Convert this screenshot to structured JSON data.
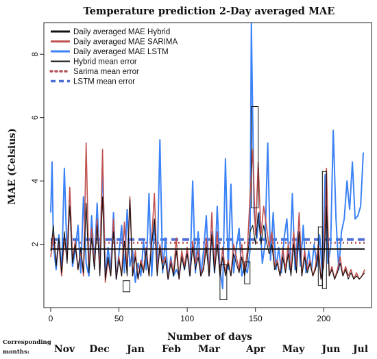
{
  "chart_data": {
    "type": "line",
    "title": "Temperature prediction 2-Day averaged MAE",
    "xlabel": "Number of days",
    "ylabel": "MAE (Celsius)",
    "xlim": [
      -5,
      235
    ],
    "ylim": [
      0,
      9
    ],
    "x_ticks": [
      0,
      50,
      100,
      150,
      200
    ],
    "y_ticks": [
      2,
      4,
      6,
      8
    ],
    "months_label": "Corresponding months:",
    "months": [
      "Nov",
      "Dec",
      "Jan",
      "Feb",
      "Mar",
      "Apr",
      "May",
      "Jun",
      "Jul"
    ],
    "legend": [
      {
        "label": "Daily averaged MAE Hybrid",
        "color": "#111111",
        "style": "solid"
      },
      {
        "label": "Daily averaged MAE SARIMA",
        "color": "#c0504d",
        "style": "solid"
      },
      {
        "label": "Daily averaged MAE LSTM",
        "color": "#3b82f6",
        "style": "solid"
      },
      {
        "label": "Hybrid mean error",
        "color": "#111111",
        "style": "solid"
      },
      {
        "label": "Sarima mean error",
        "color": "#b5545a",
        "style": "dotted"
      },
      {
        "label": "LSTM mean error",
        "color": "#4a6cd4",
        "style": "dashed"
      }
    ],
    "mean_lines": {
      "hybrid": 1.85,
      "sarima": 2.05,
      "lstm": 2.15
    },
    "anchors": {
      "lstm": [
        [
          0,
          3.0
        ],
        [
          1,
          4.6
        ],
        [
          2,
          2.0
        ],
        [
          4,
          1.2
        ],
        [
          6,
          2.3
        ],
        [
          8,
          1.1
        ],
        [
          10,
          4.4
        ],
        [
          12,
          1.6
        ],
        [
          14,
          3.6
        ],
        [
          16,
          1.3
        ],
        [
          18,
          1.8
        ],
        [
          20,
          2.6
        ],
        [
          22,
          1.1
        ],
        [
          24,
          3.5
        ],
        [
          26,
          1.4
        ],
        [
          28,
          1.0
        ],
        [
          30,
          2.9
        ],
        [
          32,
          1.3
        ],
        [
          34,
          3.3
        ],
        [
          36,
          1.2
        ],
        [
          38,
          4.6
        ],
        [
          40,
          1.0
        ],
        [
          42,
          1.9
        ],
        [
          44,
          1.2
        ],
        [
          46,
          3.0
        ],
        [
          48,
          0.9
        ],
        [
          50,
          1.7
        ],
        [
          52,
          2.6
        ],
        [
          54,
          1.1
        ],
        [
          56,
          3.1
        ],
        [
          58,
          1.3
        ],
        [
          60,
          1.8
        ],
        [
          62,
          0.8
        ],
        [
          64,
          1.4
        ],
        [
          66,
          1.0
        ],
        [
          68,
          2.1
        ],
        [
          70,
          1.2
        ],
        [
          72,
          3.6
        ],
        [
          74,
          1.0
        ],
        [
          76,
          2.7
        ],
        [
          78,
          1.3
        ],
        [
          80,
          5.3
        ],
        [
          82,
          1.1
        ],
        [
          84,
          2.2
        ],
        [
          86,
          0.9
        ],
        [
          88,
          1.6
        ],
        [
          90,
          1.0
        ],
        [
          92,
          1.2
        ],
        [
          94,
          1.0
        ],
        [
          96,
          1.7
        ],
        [
          98,
          1.2
        ],
        [
          100,
          1.8
        ],
        [
          102,
          1.0
        ],
        [
          104,
          4.0
        ],
        [
          106,
          1.1
        ],
        [
          108,
          2.4
        ],
        [
          110,
          1.0
        ],
        [
          112,
          1.8
        ],
        [
          114,
          2.9
        ],
        [
          116,
          1.0
        ],
        [
          118,
          2.4
        ],
        [
          120,
          1.1
        ],
        [
          122,
          3.2
        ],
        [
          124,
          1.2
        ],
        [
          126,
          0.6
        ],
        [
          128,
          4.7
        ],
        [
          130,
          1.2
        ],
        [
          132,
          3.9
        ],
        [
          134,
          1.1
        ],
        [
          136,
          1.9
        ],
        [
          138,
          2.5
        ],
        [
          140,
          1.0
        ],
        [
          142,
          1.3
        ],
        [
          144,
          1.1
        ],
        [
          146,
          1.8
        ],
        [
          147,
          9.0
        ],
        [
          149,
          3.0
        ],
        [
          151,
          2.2
        ],
        [
          153,
          3.0
        ],
        [
          155,
          1.4
        ],
        [
          157,
          2.0
        ],
        [
          159,
          5.2
        ],
        [
          161,
          1.5
        ],
        [
          163,
          3.0
        ],
        [
          165,
          1.2
        ],
        [
          167,
          1.9
        ],
        [
          169,
          1.1
        ],
        [
          171,
          2.2
        ],
        [
          173,
          2.8
        ],
        [
          175,
          1.2
        ],
        [
          177,
          3.6
        ],
        [
          179,
          1.2
        ],
        [
          181,
          2.4
        ],
        [
          183,
          1.3
        ],
        [
          185,
          2.6
        ],
        [
          187,
          1.1
        ],
        [
          189,
          1.8
        ],
        [
          191,
          1.2
        ],
        [
          193,
          2.0
        ],
        [
          195,
          1.3
        ],
        [
          197,
          2.3
        ],
        [
          199,
          1.0
        ],
        [
          201,
          4.2
        ],
        [
          203,
          1.4
        ],
        [
          205,
          1.9
        ],
        [
          207,
          5.6
        ],
        [
          209,
          2.8
        ],
        [
          211,
          1.2
        ],
        [
          213,
          2.4
        ],
        [
          215,
          2.8
        ],
        [
          217,
          4.0
        ],
        [
          219,
          3.1
        ],
        [
          221,
          4.6
        ],
        [
          223,
          2.8
        ],
        [
          225,
          2.9
        ],
        [
          227,
          3.2
        ],
        [
          229,
          4.9
        ]
      ],
      "sarima": [
        [
          0,
          1.6
        ],
        [
          2,
          2.3
        ],
        [
          4,
          1.4
        ],
        [
          6,
          2.0
        ],
        [
          8,
          1.0
        ],
        [
          10,
          2.2
        ],
        [
          12,
          1.5
        ],
        [
          14,
          3.8
        ],
        [
          16,
          1.5
        ],
        [
          18,
          2.1
        ],
        [
          20,
          1.2
        ],
        [
          22,
          1.8
        ],
        [
          24,
          1.0
        ],
        [
          26,
          5.2
        ],
        [
          28,
          1.2
        ],
        [
          30,
          2.5
        ],
        [
          32,
          1.3
        ],
        [
          34,
          2.8
        ],
        [
          36,
          1.1
        ],
        [
          38,
          5.0
        ],
        [
          40,
          0.8
        ],
        [
          42,
          1.5
        ],
        [
          44,
          1.0
        ],
        [
          46,
          2.8
        ],
        [
          48,
          0.9
        ],
        [
          50,
          1.6
        ],
        [
          52,
          1.0
        ],
        [
          54,
          2.7
        ],
        [
          56,
          1.1
        ],
        [
          58,
          3.5
        ],
        [
          60,
          1.0
        ],
        [
          62,
          1.8
        ],
        [
          64,
          0.9
        ],
        [
          66,
          1.5
        ],
        [
          68,
          1.2
        ],
        [
          70,
          1.9
        ],
        [
          72,
          1.0
        ],
        [
          74,
          2.2
        ],
        [
          76,
          3.6
        ],
        [
          78,
          1.1
        ],
        [
          80,
          2.0
        ],
        [
          82,
          1.4
        ],
        [
          84,
          1.6
        ],
        [
          86,
          0.9
        ],
        [
          88,
          1.5
        ],
        [
          90,
          1.1
        ],
        [
          92,
          2.2
        ],
        [
          94,
          0.9
        ],
        [
          96,
          1.8
        ],
        [
          98,
          1.3
        ],
        [
          100,
          1.9
        ],
        [
          102,
          1.0
        ],
        [
          104,
          2.1
        ],
        [
          106,
          1.4
        ],
        [
          108,
          1.8
        ],
        [
          110,
          1.0
        ],
        [
          112,
          1.3
        ],
        [
          114,
          2.2
        ],
        [
          116,
          1.0
        ],
        [
          118,
          3.0
        ],
        [
          120,
          1.2
        ],
        [
          122,
          2.4
        ],
        [
          124,
          1.0
        ],
        [
          126,
          1.9
        ],
        [
          128,
          1.1
        ],
        [
          130,
          1.5
        ],
        [
          132,
          1.0
        ],
        [
          134,
          2.0
        ],
        [
          136,
          1.6
        ],
        [
          138,
          1.2
        ],
        [
          140,
          2.0
        ],
        [
          142,
          1.1
        ],
        [
          144,
          1.8
        ],
        [
          146,
          3.5
        ],
        [
          148,
          5.0
        ],
        [
          150,
          2.3
        ],
        [
          152,
          4.6
        ],
        [
          154,
          2.3
        ],
        [
          156,
          3.2
        ],
        [
          158,
          2.6
        ],
        [
          160,
          1.9
        ],
        [
          162,
          2.4
        ],
        [
          164,
          1.3
        ],
        [
          166,
          1.5
        ],
        [
          168,
          1.0
        ],
        [
          170,
          1.9
        ],
        [
          172,
          1.2
        ],
        [
          174,
          2.0
        ],
        [
          176,
          1.1
        ],
        [
          178,
          2.4
        ],
        [
          180,
          1.2
        ],
        [
          182,
          3.0
        ],
        [
          184,
          1.0
        ],
        [
          186,
          1.8
        ],
        [
          188,
          1.2
        ],
        [
          190,
          1.5
        ],
        [
          192,
          1.0
        ],
        [
          194,
          1.3
        ],
        [
          196,
          2.0
        ],
        [
          198,
          0.9
        ],
        [
          200,
          1.5
        ],
        [
          202,
          4.4
        ],
        [
          204,
          1.0
        ],
        [
          206,
          1.3
        ],
        [
          208,
          0.9
        ],
        [
          210,
          1.2
        ],
        [
          212,
          1.6
        ],
        [
          214,
          1.0
        ],
        [
          216,
          1.3
        ],
        [
          218,
          1.0
        ],
        [
          220,
          1.2
        ],
        [
          222,
          0.9
        ],
        [
          224,
          1.1
        ],
        [
          226,
          0.9
        ],
        [
          228,
          1.0
        ],
        [
          230,
          1.2
        ]
      ],
      "hybrid": [
        [
          0,
          1.8
        ],
        [
          2,
          2.6
        ],
        [
          4,
          1.3
        ],
        [
          6,
          2.2
        ],
        [
          8,
          1.1
        ],
        [
          10,
          2.4
        ],
        [
          12,
          1.4
        ],
        [
          14,
          3.2
        ],
        [
          16,
          1.4
        ],
        [
          18,
          2.0
        ],
        [
          20,
          1.2
        ],
        [
          22,
          1.9
        ],
        [
          24,
          1.1
        ],
        [
          26,
          3.3
        ],
        [
          28,
          1.1
        ],
        [
          30,
          2.2
        ],
        [
          32,
          1.2
        ],
        [
          34,
          2.6
        ],
        [
          36,
          1.0
        ],
        [
          38,
          3.5
        ],
        [
          40,
          0.9
        ],
        [
          42,
          1.6
        ],
        [
          44,
          1.0
        ],
        [
          46,
          2.4
        ],
        [
          48,
          0.9
        ],
        [
          50,
          1.5
        ],
        [
          52,
          1.0
        ],
        [
          54,
          2.1
        ],
        [
          56,
          1.0
        ],
        [
          58,
          3.4
        ],
        [
          60,
          1.0
        ],
        [
          62,
          1.6
        ],
        [
          64,
          0.9
        ],
        [
          66,
          1.4
        ],
        [
          68,
          1.1
        ],
        [
          70,
          1.8
        ],
        [
          72,
          1.0
        ],
        [
          74,
          2.0
        ],
        [
          76,
          2.8
        ],
        [
          78,
          1.0
        ],
        [
          80,
          1.9
        ],
        [
          82,
          1.2
        ],
        [
          84,
          1.5
        ],
        [
          86,
          0.9
        ],
        [
          88,
          1.4
        ],
        [
          90,
          1.0
        ],
        [
          92,
          1.8
        ],
        [
          94,
          0.9
        ],
        [
          96,
          1.6
        ],
        [
          98,
          1.2
        ],
        [
          100,
          1.7
        ],
        [
          102,
          1.0
        ],
        [
          104,
          1.9
        ],
        [
          106,
          1.2
        ],
        [
          108,
          1.6
        ],
        [
          110,
          1.0
        ],
        [
          112,
          1.2
        ],
        [
          114,
          1.9
        ],
        [
          116,
          1.0
        ],
        [
          118,
          2.3
        ],
        [
          120,
          1.1
        ],
        [
          122,
          2.0
        ],
        [
          124,
          1.0
        ],
        [
          126,
          1.6
        ],
        [
          128,
          1.0
        ],
        [
          130,
          1.4
        ],
        [
          132,
          1.0
        ],
        [
          134,
          1.7
        ],
        [
          136,
          1.4
        ],
        [
          138,
          1.1
        ],
        [
          140,
          1.6
        ],
        [
          142,
          1.0
        ],
        [
          144,
          1.5
        ],
        [
          146,
          2.4
        ],
        [
          148,
          2.6
        ],
        [
          150,
          2.0
        ],
        [
          152,
          3.0
        ],
        [
          154,
          2.0
        ],
        [
          156,
          2.6
        ],
        [
          158,
          2.1
        ],
        [
          160,
          1.7
        ],
        [
          162,
          2.0
        ],
        [
          164,
          1.2
        ],
        [
          166,
          1.4
        ],
        [
          168,
          1.0
        ],
        [
          170,
          1.6
        ],
        [
          172,
          1.1
        ],
        [
          174,
          1.7
        ],
        [
          176,
          1.0
        ],
        [
          178,
          2.0
        ],
        [
          180,
          1.1
        ],
        [
          182,
          2.4
        ],
        [
          184,
          1.0
        ],
        [
          186,
          1.6
        ],
        [
          188,
          1.1
        ],
        [
          190,
          1.4
        ],
        [
          192,
          1.0
        ],
        [
          194,
          1.2
        ],
        [
          196,
          1.7
        ],
        [
          198,
          0.9
        ],
        [
          200,
          1.3
        ],
        [
          202,
          3.2
        ],
        [
          204,
          1.0
        ],
        [
          206,
          1.2
        ],
        [
          208,
          0.9
        ],
        [
          210,
          1.1
        ],
        [
          212,
          1.4
        ],
        [
          214,
          1.0
        ],
        [
          216,
          1.2
        ],
        [
          218,
          0.9
        ],
        [
          220,
          1.1
        ],
        [
          222,
          0.9
        ],
        [
          224,
          1.0
        ],
        [
          226,
          0.9
        ],
        [
          228,
          1.0
        ],
        [
          230,
          1.1
        ]
      ]
    },
    "highlight_boxes": [
      {
        "x": [
          53,
          58
        ],
        "y": [
          0.5,
          0.85
        ]
      },
      {
        "x": [
          124,
          129
        ],
        "y": [
          0.25,
          1.35
        ]
      },
      {
        "x": [
          142,
          146
        ],
        "y": [
          0.75,
          1.45
        ]
      },
      {
        "x": [
          147,
          152
        ],
        "y": [
          3.15,
          6.35
        ]
      },
      {
        "x": [
          196,
          199
        ],
        "y": [
          0.7,
          2.55
        ]
      },
      {
        "x": [
          199,
          202
        ],
        "y": [
          0.6,
          4.3
        ]
      }
    ]
  }
}
